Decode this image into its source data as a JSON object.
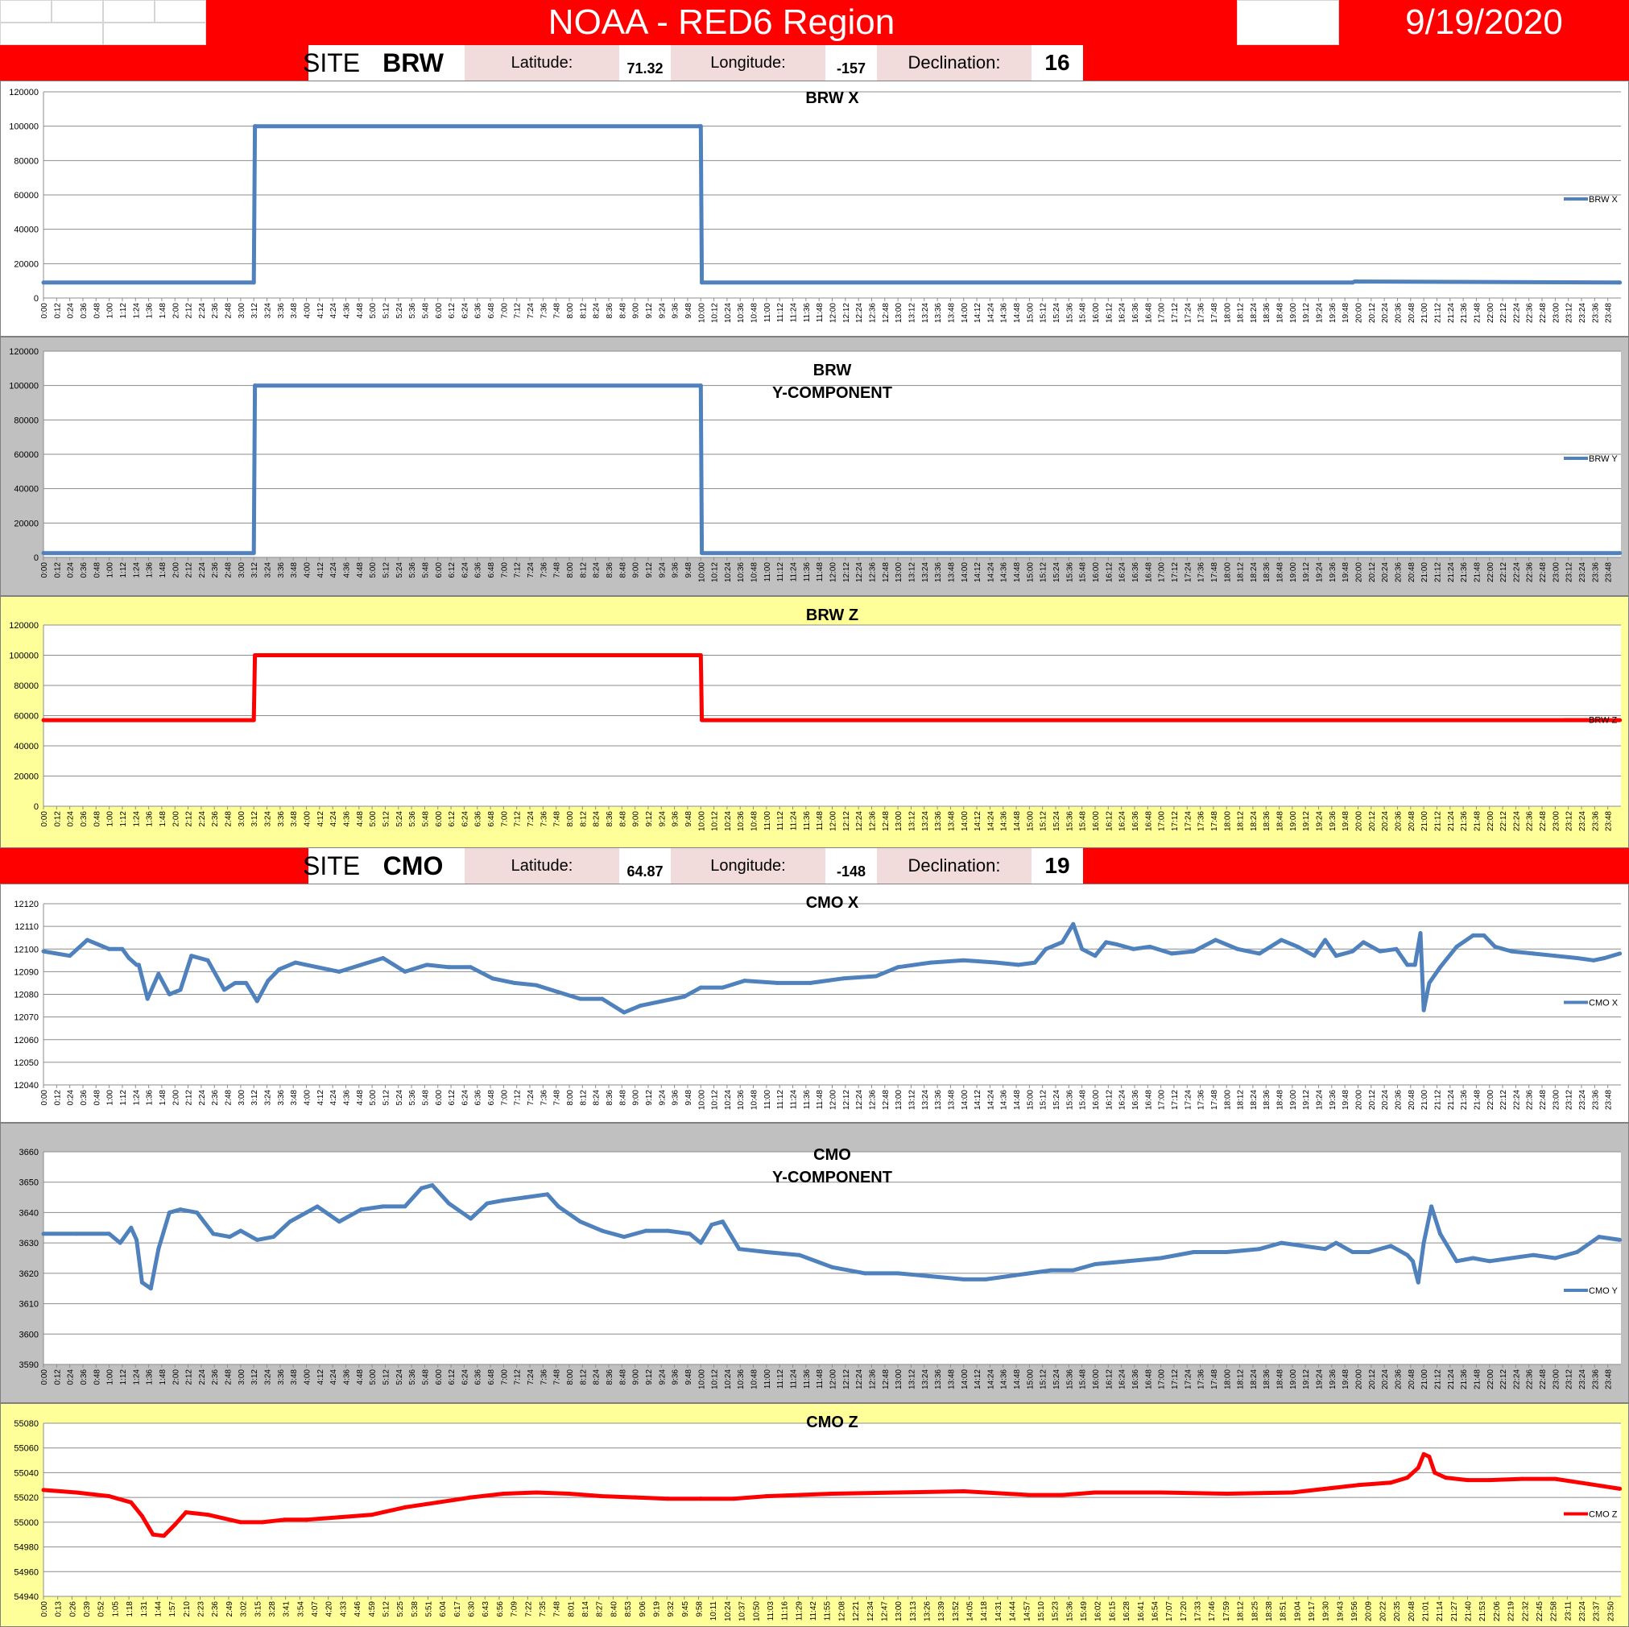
{
  "header": {
    "title": "NOAA - RED6 Region",
    "date": "9/19/2020"
  },
  "sites": [
    {
      "site_label": "SITE:",
      "site": "BRW",
      "lat_label": "Latitude:",
      "lat": "71.32",
      "lon_label": "Longitude:",
      "lon": "-157",
      "decl_label": "Declination:",
      "decl": "16"
    },
    {
      "site_label": "SITE:",
      "site": "CMO",
      "lat_label": "Latitude:",
      "lat": "64.87",
      "lon_label": "Longitude:",
      "lon": "-148",
      "decl_label": "Declination:",
      "decl": "19"
    }
  ],
  "colors": {
    "blue": "#4f81bd",
    "red": "#ff0000",
    "gray_bg": "#c0c0c0",
    "yellow_bg": "#ffff99",
    "banner": "#ff0000"
  },
  "chart_data": [
    {
      "type": "line",
      "title": [
        "BRW X"
      ],
      "legend": "BRW X",
      "legend_position": "right",
      "ylim": [
        0,
        120000
      ],
      "yticks": [
        0,
        20000,
        40000,
        60000,
        80000,
        100000,
        120000
      ],
      "x_tick_interval_min": 12,
      "x_last_tick": "23:48",
      "color": "blue",
      "background": "white",
      "series": [
        {
          "x": [
            "0:00",
            "3:12",
            "3:13",
            "10:00",
            "10:01",
            "19:55",
            "19:57",
            "23:59"
          ],
          "y": [
            9000,
            9000,
            100000,
            100000,
            9000,
            9000,
            9600,
            9000
          ]
        }
      ]
    },
    {
      "type": "line",
      "title": [
        "BRW",
        "Y-COMPONENT"
      ],
      "legend": "BRW Y",
      "legend_position": "right",
      "ylim": [
        0,
        120000
      ],
      "yticks": [
        0,
        20000,
        40000,
        60000,
        80000,
        100000,
        120000
      ],
      "x_tick_interval_min": 12,
      "x_last_tick": "23:48",
      "color": "blue",
      "background": "gray",
      "series": [
        {
          "x": [
            "0:00",
            "3:12",
            "3:13",
            "10:00",
            "10:01",
            "23:59"
          ],
          "y": [
            2500,
            2500,
            100000,
            100000,
            2500,
            2500
          ]
        }
      ]
    },
    {
      "type": "line",
      "title": [
        "BRW Z"
      ],
      "legend": "BRW Z",
      "legend_position": "right",
      "ylim": [
        0,
        120000
      ],
      "yticks": [
        0,
        20000,
        40000,
        60000,
        80000,
        100000,
        120000
      ],
      "x_tick_interval_min": 12,
      "x_last_tick": "23:48",
      "color": "red",
      "background": "yellow",
      "series": [
        {
          "x": [
            "0:00",
            "3:12",
            "3:13",
            "10:00",
            "10:01",
            "23:59"
          ],
          "y": [
            57000,
            57000,
            100000,
            100000,
            57000,
            57000
          ]
        }
      ]
    },
    {
      "type": "line",
      "title": [
        "CMO X"
      ],
      "legend": "CMO X",
      "legend_position": "right",
      "ylim": [
        12040,
        12120
      ],
      "yticks": [
        12040,
        12050,
        12060,
        12070,
        12080,
        12090,
        12100,
        12110,
        12120
      ],
      "x_tick_interval_min": 12,
      "x_last_tick": "23:48",
      "color": "blue",
      "background": "white",
      "series": [
        {
          "x": [
            "0:00",
            "0:24",
            "0:40",
            "1:00",
            "1:12",
            "1:18",
            "1:25",
            "1:27",
            "1:35",
            "1:45",
            "1:55",
            "2:05",
            "2:15",
            "2:30",
            "2:45",
            "2:55",
            "3:05",
            "3:15",
            "3:25",
            "3:35",
            "3:50",
            "4:10",
            "4:30",
            "4:50",
            "5:10",
            "5:30",
            "5:50",
            "6:10",
            "6:30",
            "6:50",
            "7:10",
            "7:30",
            "7:50",
            "8:10",
            "8:30",
            "8:50",
            "9:05",
            "9:25",
            "9:45",
            "10:00",
            "10:20",
            "10:40",
            "11:10",
            "11:40",
            "12:10",
            "12:40",
            "13:00",
            "13:30",
            "14:00",
            "14:30",
            "14:50",
            "15:05",
            "15:15",
            "15:30",
            "15:40",
            "15:48",
            "16:00",
            "16:10",
            "16:20",
            "16:35",
            "16:50",
            "17:10",
            "17:30",
            "17:50",
            "18:10",
            "18:30",
            "18:50",
            "19:05",
            "19:20",
            "19:30",
            "19:40",
            "19:55",
            "20:05",
            "20:20",
            "20:35",
            "20:45",
            "20:52",
            "20:57",
            "21:00",
            "21:05",
            "21:15",
            "21:30",
            "21:45",
            "21:55",
            "22:05",
            "22:20",
            "22:40",
            "23:00",
            "23:20",
            "23:35",
            "23:45",
            "23:59"
          ],
          "y": [
            12099,
            12097,
            12104,
            12100,
            12100,
            12096,
            12093,
            12093,
            12078,
            12089,
            12080,
            12082,
            12097,
            12095,
            12082,
            12085,
            12085,
            12077,
            12086,
            12091,
            12094,
            12092,
            12090,
            12093,
            12096,
            12090,
            12093,
            12092,
            12092,
            12087,
            12085,
            12084,
            12081,
            12078,
            12078,
            12072,
            12075,
            12077,
            12079,
            12083,
            12083,
            12086,
            12085,
            12085,
            12087,
            12088,
            12092,
            12094,
            12095,
            12094,
            12093,
            12094,
            12100,
            12103,
            12111,
            12100,
            12097,
            12103,
            12102,
            12100,
            12101,
            12098,
            12099,
            12104,
            12100,
            12098,
            12104,
            12101,
            12097,
            12104,
            12097,
            12099,
            12103,
            12099,
            12100,
            12093,
            12093,
            12107,
            12073,
            12085,
            12092,
            12101,
            12106,
            12106,
            12101,
            12099,
            12098,
            12097,
            12096,
            12095,
            12096,
            12098
          ]
        }
      ]
    },
    {
      "type": "line",
      "title": [
        "CMO",
        "Y-COMPONENT"
      ],
      "legend": "CMO Y",
      "legend_position": "right",
      "ylim": [
        3590,
        3660
      ],
      "yticks": [
        3590,
        3600,
        3610,
        3620,
        3630,
        3640,
        3650,
        3660
      ],
      "x_tick_interval_min": 12,
      "x_last_tick": "23:48",
      "color": "blue",
      "background": "gray",
      "series": [
        {
          "x": [
            "0:00",
            "0:30",
            "1:00",
            "1:10",
            "1:20",
            "1:25",
            "1:30",
            "1:38",
            "1:45",
            "1:55",
            "2:05",
            "2:20",
            "2:35",
            "2:50",
            "3:00",
            "3:15",
            "3:30",
            "3:45",
            "4:00",
            "4:10",
            "4:30",
            "4:50",
            "5:10",
            "5:30",
            "5:45",
            "5:55",
            "6:10",
            "6:30",
            "6:45",
            "7:00",
            "7:20",
            "7:40",
            "7:50",
            "8:10",
            "8:30",
            "8:50",
            "9:10",
            "9:30",
            "9:50",
            "10:00",
            "10:10",
            "10:20",
            "10:35",
            "11:00",
            "11:30",
            "12:00",
            "12:30",
            "13:00",
            "13:30",
            "14:00",
            "14:20",
            "14:40",
            "15:00",
            "15:20",
            "15:40",
            "16:00",
            "16:30",
            "17:00",
            "17:30",
            "18:00",
            "18:30",
            "18:50",
            "19:10",
            "19:30",
            "19:40",
            "19:55",
            "20:10",
            "20:30",
            "20:45",
            "20:50",
            "20:55",
            "21:00",
            "21:07",
            "21:15",
            "21:30",
            "21:45",
            "22:00",
            "22:20",
            "22:40",
            "23:00",
            "23:20",
            "23:40",
            "23:59"
          ],
          "y": [
            3633,
            3633,
            3633,
            3630,
            3635,
            3631,
            3617,
            3615,
            3628,
            3640,
            3641,
            3640,
            3633,
            3632,
            3634,
            3631,
            3632,
            3637,
            3640,
            3642,
            3637,
            3641,
            3642,
            3642,
            3648,
            3649,
            3643,
            3638,
            3643,
            3644,
            3645,
            3646,
            3642,
            3637,
            3634,
            3632,
            3634,
            3634,
            3633,
            3630,
            3636,
            3637,
            3628,
            3627,
            3626,
            3622,
            3620,
            3620,
            3619,
            3618,
            3618,
            3619,
            3620,
            3621,
            3621,
            3623,
            3624,
            3625,
            3627,
            3627,
            3628,
            3630,
            3629,
            3628,
            3630,
            3627,
            3627,
            3629,
            3626,
            3624,
            3617,
            3630,
            3642,
            3633,
            3624,
            3625,
            3624,
            3625,
            3626,
            3625,
            3627,
            3632,
            3631
          ]
        }
      ]
    },
    {
      "type": "line",
      "title": [
        "CMO Z"
      ],
      "legend": "CMO Z",
      "legend_position": "right",
      "ylim": [
        54940,
        55080
      ],
      "yticks": [
        54940,
        54960,
        54980,
        55000,
        55020,
        55040,
        55060,
        55080
      ],
      "x_tick_interval_min": 13,
      "x_last_tick": "23:50",
      "color": "red",
      "background": "yellow",
      "series": [
        {
          "x": [
            "0:00",
            "0:30",
            "1:00",
            "1:20",
            "1:30",
            "1:40",
            "1:50",
            "2:00",
            "2:10",
            "2:30",
            "3:00",
            "3:20",
            "3:40",
            "4:00",
            "4:30",
            "5:00",
            "5:30",
            "6:00",
            "6:30",
            "7:00",
            "7:30",
            "8:00",
            "8:30",
            "9:00",
            "9:30",
            "10:00",
            "10:30",
            "11:00",
            "12:00",
            "13:00",
            "14:00",
            "15:00",
            "15:30",
            "16:00",
            "17:00",
            "18:00",
            "19:00",
            "19:30",
            "20:00",
            "20:30",
            "20:45",
            "20:55",
            "21:00",
            "21:05",
            "21:10",
            "21:20",
            "21:40",
            "22:00",
            "22:30",
            "23:00",
            "23:30",
            "23:59"
          ],
          "y": [
            55026,
            55024,
            55021,
            55016,
            55005,
            54990,
            54989,
            54998,
            55008,
            55006,
            55000,
            55000,
            55002,
            55002,
            55004,
            55006,
            55012,
            55016,
            55020,
            55023,
            55024,
            55023,
            55021,
            55020,
            55019,
            55019,
            55019,
            55021,
            55023,
            55024,
            55025,
            55022,
            55022,
            55024,
            55024,
            55023,
            55024,
            55027,
            55030,
            55032,
            55036,
            55044,
            55055,
            55053,
            55040,
            55036,
            55034,
            55034,
            55035,
            55035,
            55031,
            55027
          ]
        }
      ]
    }
  ]
}
